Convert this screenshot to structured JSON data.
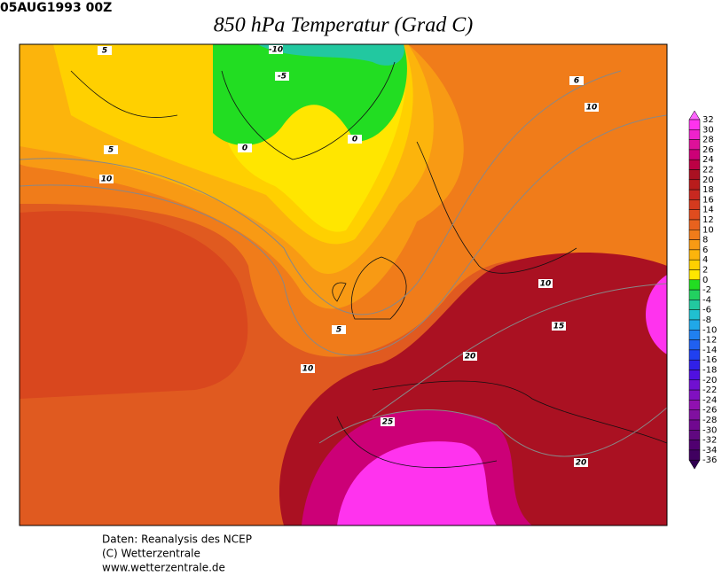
{
  "header": {
    "date": "05AUG1993 00Z",
    "title": "850 hPa Temperatur (Grad C)"
  },
  "colorbar": {
    "labels": [
      32,
      30,
      28,
      26,
      24,
      22,
      20,
      18,
      16,
      14,
      12,
      10,
      8,
      6,
      4,
      2,
      0,
      -2,
      -4,
      -6,
      -8,
      -10,
      -12,
      -14,
      -16,
      -18,
      -20,
      -22,
      -24,
      -26,
      -28,
      -30,
      -32,
      -34,
      -36
    ],
    "colors": [
      "#ff66ff",
      "#ff33ee",
      "#ee22cc",
      "#dd1199",
      "#cc0077",
      "#bb0044",
      "#aa1122",
      "#b81c1c",
      "#c82820",
      "#d43a1e",
      "#e04c1e",
      "#e8621e",
      "#f07c1a",
      "#f89a14",
      "#fcb40c",
      "#ffd000",
      "#ffe600",
      "#22dd22",
      "#22d060",
      "#22c8a0",
      "#20c0d0",
      "#20a8e8",
      "#2080f0",
      "#2060f0",
      "#2040f0",
      "#3020e8",
      "#5010e0",
      "#7010d0",
      "#8010c0",
      "#9010b0",
      "#8010a0",
      "#700890",
      "#600880",
      "#500070",
      "#400060",
      "#300050"
    ]
  },
  "contour_labels": [
    5,
    -10,
    -5,
    6,
    10,
    0,
    0,
    5,
    10,
    10,
    15,
    5,
    20,
    10,
    25,
    20
  ],
  "footer": {
    "lines": [
      "Daten: Reanalysis des NCEP",
      "(C) Wetterzentrale",
      "www.wetterzentrale.de"
    ]
  }
}
